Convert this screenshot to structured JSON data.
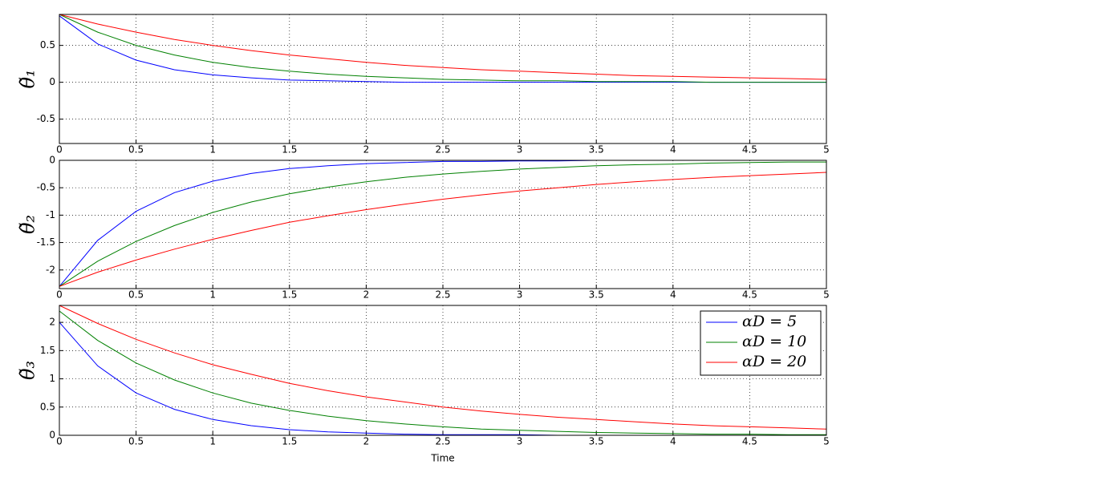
{
  "chart_data": [
    {
      "type": "line",
      "ylabel": "θ̃₁",
      "x": [
        0,
        0.25,
        0.5,
        0.75,
        1,
        1.25,
        1.5,
        1.75,
        2,
        2.25,
        2.5,
        2.75,
        3,
        3.25,
        3.5,
        3.75,
        4,
        4.25,
        4.5,
        4.75,
        5
      ],
      "series": [
        {
          "color": "#0000ff",
          "values": [
            0.9,
            0.52,
            0.3,
            0.17,
            0.1,
            0.06,
            0.03,
            0.02,
            0.01,
            0,
            0,
            0,
            0,
            0,
            0,
            0,
            0,
            0,
            0,
            0,
            0
          ]
        },
        {
          "color": "#008000",
          "values": [
            0.92,
            0.68,
            0.5,
            0.37,
            0.27,
            0.2,
            0.15,
            0.11,
            0.08,
            0.06,
            0.04,
            0.03,
            0.02,
            0.02,
            0.01,
            0.01,
            0.01,
            0,
            0,
            0,
            0
          ]
        },
        {
          "color": "#ff0000",
          "values": [
            0.92,
            0.79,
            0.68,
            0.58,
            0.5,
            0.43,
            0.37,
            0.32,
            0.27,
            0.23,
            0.2,
            0.17,
            0.15,
            0.13,
            0.11,
            0.09,
            0.08,
            0.07,
            0.06,
            0.05,
            0.04
          ]
        }
      ],
      "xlim": [
        0,
        5
      ],
      "xticks": [
        0,
        0.5,
        1,
        1.5,
        2,
        2.5,
        3,
        3.5,
        4,
        4.5,
        5
      ],
      "ylim": [
        -0.83,
        0.92
      ],
      "yticks": [
        -0.5,
        0,
        0.5
      ],
      "grid": true
    },
    {
      "type": "line",
      "ylabel": "θ̃₂",
      "x": [
        0,
        0.25,
        0.5,
        0.75,
        1,
        1.25,
        1.5,
        1.75,
        2,
        2.25,
        2.5,
        2.75,
        3,
        3.25,
        3.5,
        3.75,
        4,
        4.25,
        4.5,
        4.75,
        5
      ],
      "series": [
        {
          "color": "#0000ff",
          "values": [
            -2.3,
            -1.46,
            -0.93,
            -0.59,
            -0.38,
            -0.24,
            -0.15,
            -0.1,
            -0.06,
            -0.04,
            -0.02,
            -0.02,
            -0.01,
            -0.01,
            0,
            0,
            0,
            0,
            0,
            0,
            0
          ]
        },
        {
          "color": "#008000",
          "values": [
            -2.3,
            -1.84,
            -1.48,
            -1.19,
            -0.95,
            -0.76,
            -0.61,
            -0.49,
            -0.39,
            -0.31,
            -0.25,
            -0.2,
            -0.16,
            -0.13,
            -0.1,
            -0.08,
            -0.07,
            -0.05,
            -0.04,
            -0.03,
            -0.03
          ]
        },
        {
          "color": "#ff0000",
          "values": [
            -2.3,
            -2.04,
            -1.82,
            -1.62,
            -1.44,
            -1.28,
            -1.13,
            -1.01,
            -0.9,
            -0.8,
            -0.71,
            -0.63,
            -0.56,
            -0.5,
            -0.44,
            -0.39,
            -0.35,
            -0.31,
            -0.28,
            -0.25,
            -0.22
          ]
        }
      ],
      "xlim": [
        0,
        5
      ],
      "xticks": [
        0,
        0.5,
        1,
        1.5,
        2,
        2.5,
        3,
        3.5,
        4,
        4.5,
        5
      ],
      "ylim": [
        -2.34,
        0
      ],
      "yticks": [
        -2,
        -1.5,
        -1,
        -0.5,
        0
      ],
      "grid": true
    },
    {
      "type": "line",
      "ylabel": "θ̃₃",
      "xlabel": "Time",
      "x": [
        0,
        0.25,
        0.5,
        0.75,
        1,
        1.25,
        1.5,
        1.75,
        2,
        2.25,
        2.5,
        2.75,
        3,
        3.25,
        3.5,
        3.75,
        4,
        4.25,
        4.5,
        4.75,
        5
      ],
      "series": [
        {
          "name": "αD = 5",
          "color": "#0000ff",
          "values": [
            2.0,
            1.23,
            0.75,
            0.46,
            0.28,
            0.17,
            0.1,
            0.06,
            0.04,
            0.02,
            0.01,
            0.01,
            0.01,
            0,
            0,
            0,
            0,
            0,
            0,
            0,
            0
          ]
        },
        {
          "name": "αD = 10",
          "color": "#008000",
          "values": [
            2.2,
            1.68,
            1.28,
            0.98,
            0.75,
            0.57,
            0.44,
            0.34,
            0.26,
            0.2,
            0.15,
            0.11,
            0.09,
            0.07,
            0.05,
            0.04,
            0.03,
            0.02,
            0.02,
            0.01,
            0.01
          ]
        },
        {
          "name": "αD = 20",
          "color": "#ff0000",
          "values": [
            2.3,
            1.98,
            1.7,
            1.46,
            1.25,
            1.08,
            0.92,
            0.79,
            0.68,
            0.59,
            0.5,
            0.43,
            0.37,
            0.32,
            0.28,
            0.24,
            0.2,
            0.17,
            0.15,
            0.13,
            0.11
          ]
        }
      ],
      "xlim": [
        0,
        5
      ],
      "xticks": [
        0,
        0.5,
        1,
        1.5,
        2,
        2.5,
        3,
        3.5,
        4,
        4.5,
        5
      ],
      "ylim": [
        0,
        2.3
      ],
      "yticks": [
        0,
        0.5,
        1,
        1.5,
        2
      ],
      "grid": true,
      "legend": "northeast"
    }
  ]
}
